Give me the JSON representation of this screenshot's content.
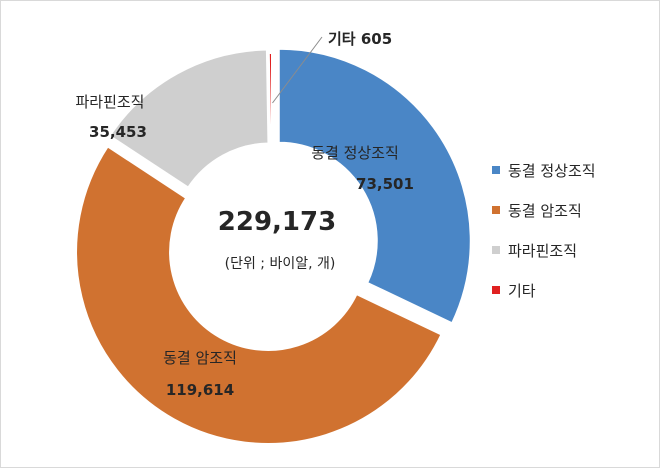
{
  "chart_data": {
    "type": "pie",
    "donut": true,
    "categories": [
      "동결 정상조직",
      "동결 암조직",
      "파라핀조직",
      "기타"
    ],
    "values": [
      73501,
      119614,
      35453,
      605
    ],
    "value_labels": [
      "73,501",
      "119,614",
      "35,453",
      "605"
    ],
    "colors": [
      "#4a86c6",
      "#d07230",
      "#cfcfcf",
      "#e02020"
    ],
    "center_total": "229,173",
    "center_unit": "(단위 ; 바이알, 개)",
    "other_label": "기타 605",
    "legend_position": "right"
  }
}
